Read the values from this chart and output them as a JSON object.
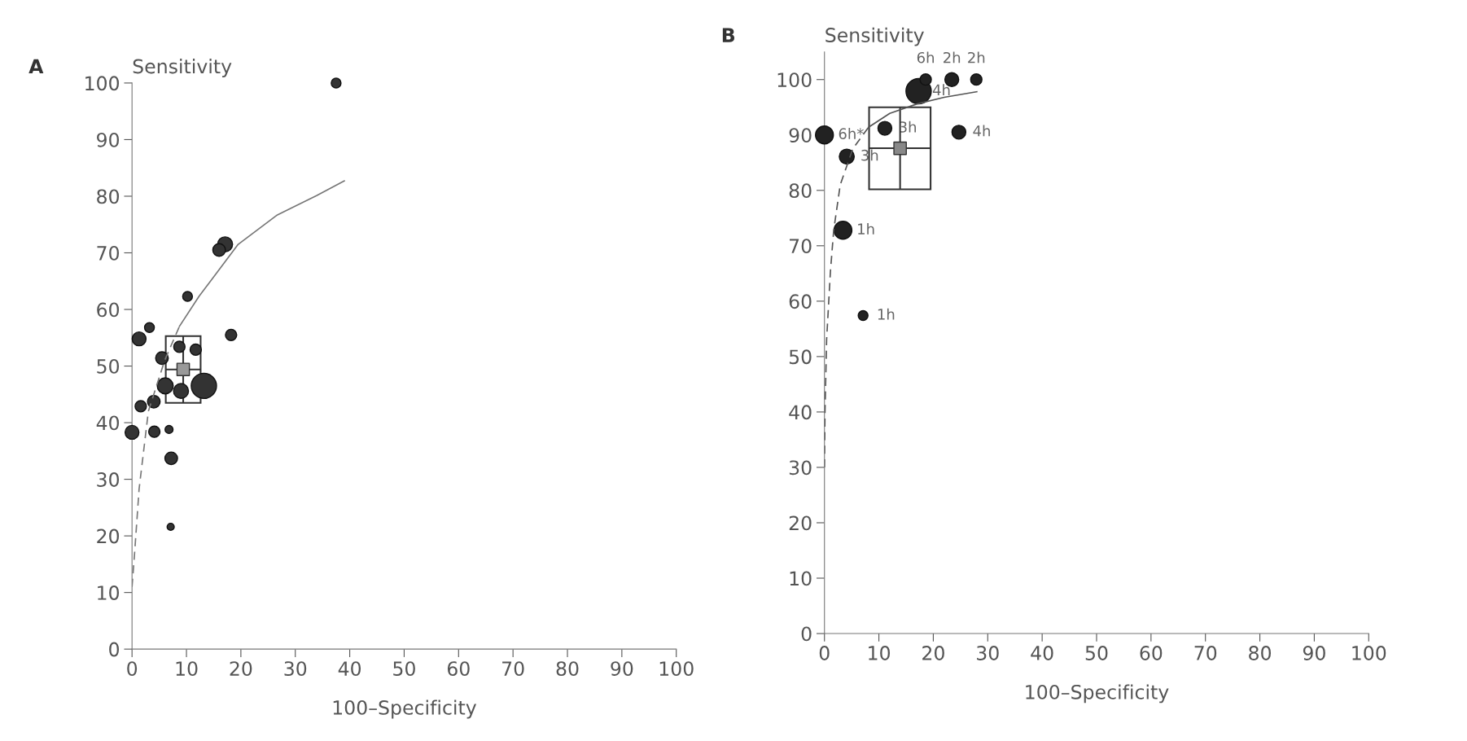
{
  "chart_data": [
    {
      "type": "scatter",
      "title": "A",
      "ylabel": "Sensitivity",
      "xlabel": "100–Specificity",
      "xlim": [
        0,
        100
      ],
      "ylim": [
        0,
        100
      ],
      "xticks": [
        0,
        10,
        20,
        30,
        40,
        50,
        60,
        70,
        80,
        90,
        100
      ],
      "yticks": [
        0,
        10,
        20,
        30,
        40,
        50,
        60,
        70,
        80,
        90,
        100
      ],
      "grid": false,
      "legend": false,
      "marker": "circle",
      "series": [
        {
          "type": "line",
          "marker": "none",
          "line_style": "dashed",
          "color": "#777777",
          "x": [
            0,
            0.4,
            1.3,
            3,
            6,
            8.7
          ],
          "values": [
            11,
            16,
            28.3,
            42,
            51,
            57
          ]
        },
        {
          "type": "line",
          "marker": "none",
          "line_style": "solid",
          "color": "#777777",
          "x": [
            8.7,
            12.3,
            19.5,
            26.7,
            33.9,
            39
          ],
          "values": [
            57,
            62.3,
            71.5,
            76.7,
            80.1,
            82.7
          ]
        },
        {
          "color": "#333333",
          "x": [
            37.5,
            17.1,
            16,
            10.2,
            3.2,
            1.3,
            18.2,
            5.5,
            1.6,
            4,
            0,
            4.1,
            6.8,
            7.2,
            7.1,
            6.1,
            9,
            13.2,
            8.7,
            11.7
          ],
          "values": [
            100,
            71.5,
            70.5,
            62.3,
            56.8,
            54.8,
            55.5,
            51.4,
            42.9,
            43.7,
            38.3,
            38.4,
            38.8,
            33.7,
            21.6,
            46.5,
            45.6,
            46.5,
            53.4,
            52.9
          ],
          "sizes": [
            0.15,
            0.35,
            0.25,
            0.15,
            0.15,
            0.3,
            0.2,
            0.25,
            0.2,
            0.25,
            0.3,
            0.2,
            0.1,
            0.25,
            0.08,
            0.4,
            0.35,
            1,
            0.2,
            0.2
          ]
        },
        {
          "marker": "square",
          "color": "#999999",
          "x": [
            9.4
          ],
          "values": [
            49.4
          ],
          "xerrors": [
            [
              6.2,
              12.6
            ]
          ],
          "errors": [
            [
              43.5,
              55.3
            ]
          ]
        }
      ]
    },
    {
      "type": "scatter",
      "title": "B",
      "ylabel": "Sensitivity",
      "xlabel": "100–Specificity",
      "xlim": [
        0,
        100
      ],
      "ylim": [
        0,
        105
      ],
      "xticks": [
        0,
        10,
        20,
        30,
        40,
        50,
        60,
        70,
        80,
        90,
        100
      ],
      "yticks": [
        0,
        10,
        20,
        30,
        40,
        50,
        60,
        70,
        80,
        90,
        100
      ],
      "grid": false,
      "legend": false,
      "marker": "circle",
      "series": [
        {
          "type": "line",
          "marker": "none",
          "line_style": "dashed",
          "color": "#555555",
          "x": [
            0,
            0.1,
            0.4,
            1.1,
            1.7,
            2.9,
            5.2,
            8.1
          ],
          "values": [
            30,
            40,
            53.1,
            65.4,
            72.8,
            81,
            87.5,
            91.4
          ]
        },
        {
          "type": "line",
          "marker": "none",
          "line_style": "solid",
          "color": "#555555",
          "x": [
            8.1,
            12,
            17,
            22,
            28
          ],
          "values": [
            91.4,
            93.9,
            95.6,
            96.8,
            97.8
          ]
        },
        {
          "marker": "square",
          "color": "#888888",
          "x": [
            13.9
          ],
          "values": [
            87.6
          ],
          "xerrors": [
            [
              8.2,
              19.5
            ]
          ],
          "errors": [
            [
              80.2,
              95
            ]
          ]
        },
        {
          "color": "#222222",
          "x": [
            0,
            4.1,
            3.4,
            7.1,
            11.1,
            17.3,
            18.6,
            23.4,
            27.9,
            24.7
          ],
          "values": [
            90,
            86.1,
            72.8,
            57.4,
            91.2,
            97.9,
            100,
            100,
            100,
            90.5
          ],
          "sizes": [
            0.5,
            0.35,
            0.5,
            0.15,
            0.3,
            1,
            0.2,
            0.3,
            0.2,
            0.3
          ],
          "type": "scatter"
        }
      ],
      "annotations": [
        {
          "text": "6h*",
          "x": 0,
          "y": 90
        },
        {
          "text": "3h",
          "x": 4.1,
          "y": 86.1
        },
        {
          "text": "1h",
          "x": 3.4,
          "y": 72.8
        },
        {
          "text": "1h",
          "x": 7.1,
          "y": 57.4
        },
        {
          "text": "3h",
          "x": 11.1,
          "y": 91.2
        },
        {
          "text": "4h",
          "x": 17.3,
          "y": 97.9
        },
        {
          "text": "6h",
          "x": 18.6,
          "y": 100
        },
        {
          "text": "2h",
          "x": 23.4,
          "y": 100
        },
        {
          "text": "2h",
          "x": 27.9,
          "y": 100
        },
        {
          "text": "4h",
          "x": 24.7,
          "y": 90.5
        }
      ]
    }
  ]
}
